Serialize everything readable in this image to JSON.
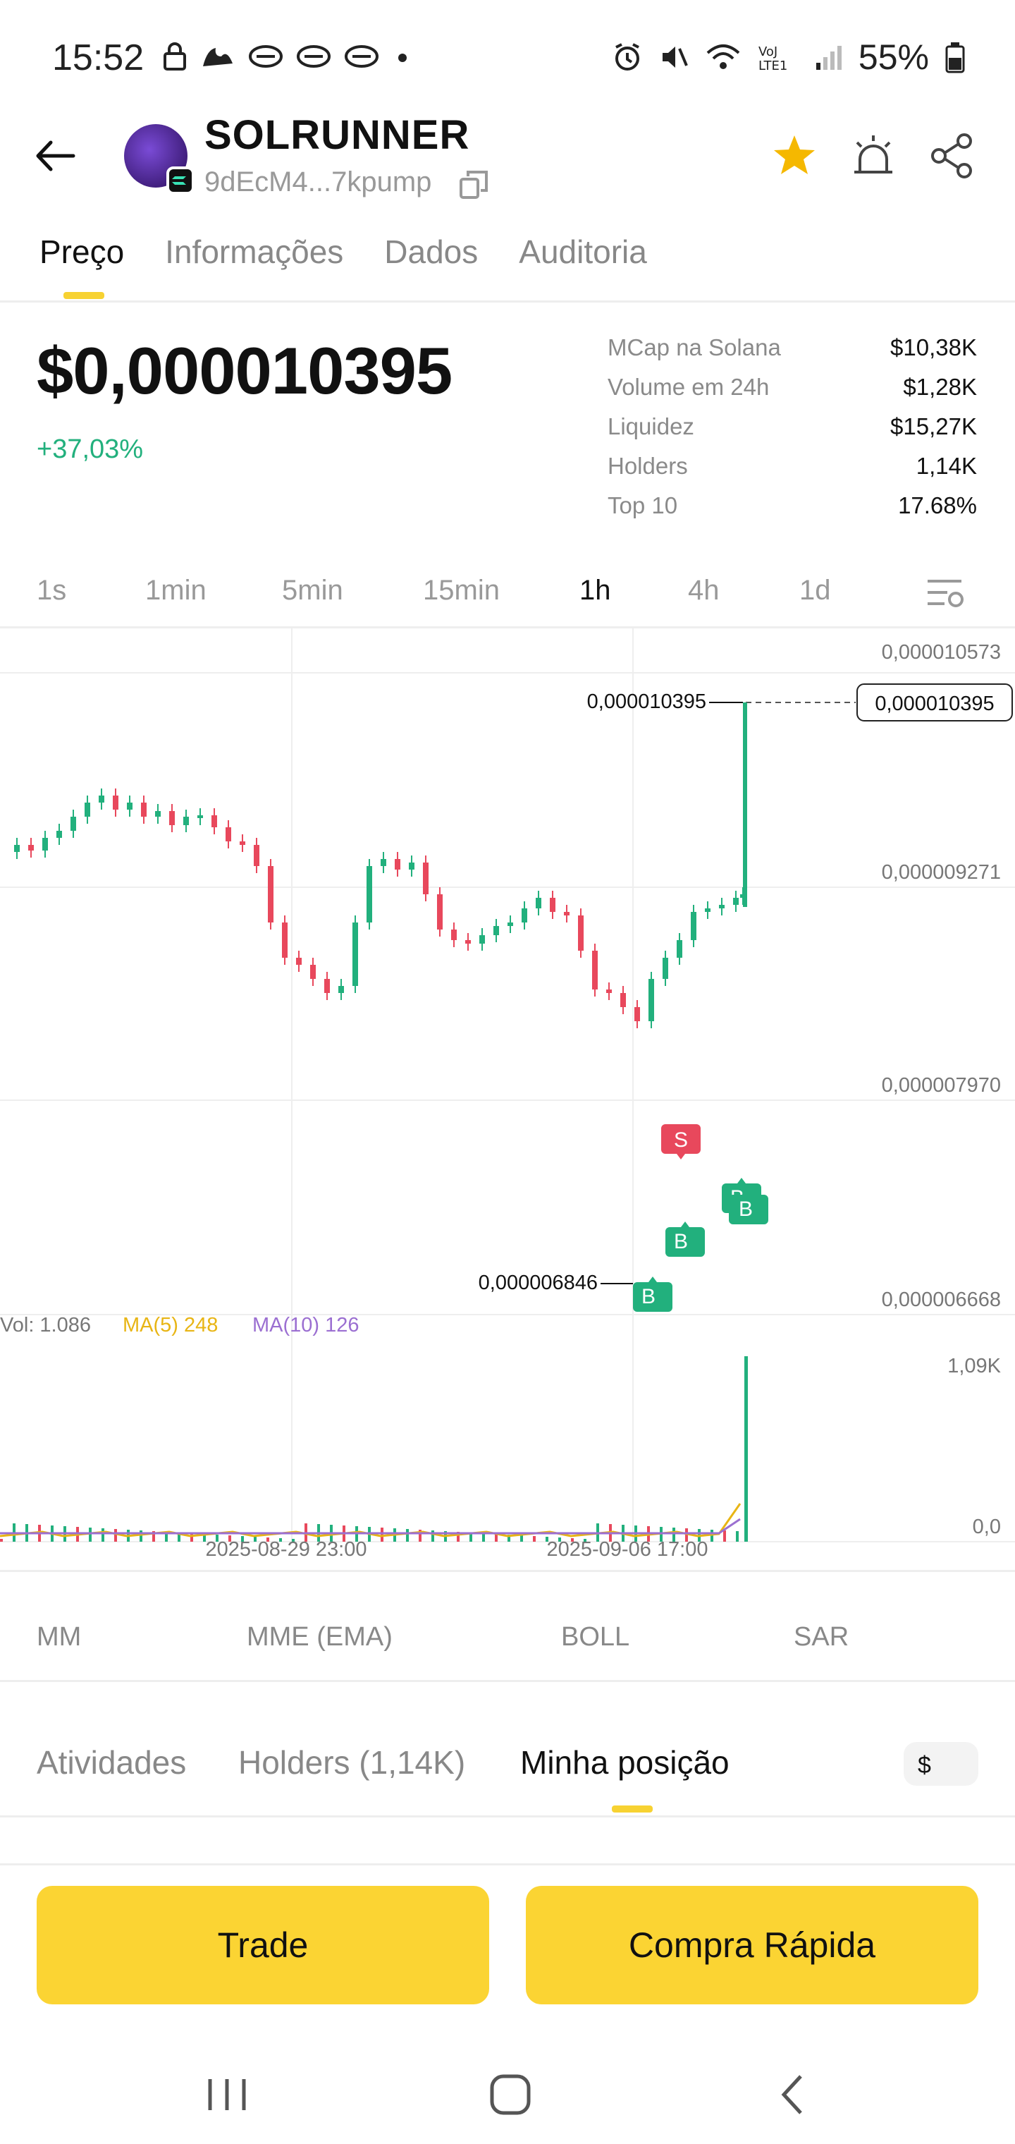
{
  "status_bar": {
    "time": "15:52",
    "battery": "55%",
    "network": "LTE1"
  },
  "header": {
    "title": "SOLRUNNER",
    "address": "9dEcM4...7kpump"
  },
  "tabs": [
    {
      "label": "Preço",
      "active": true
    },
    {
      "label": "Informações",
      "active": false
    },
    {
      "label": "Dados",
      "active": false
    },
    {
      "label": "Auditoria",
      "active": false
    }
  ],
  "price": {
    "value": "$0,000010395",
    "change": "+37,03%"
  },
  "stats": [
    {
      "label": "MCap na Solana",
      "value": "$10,38K"
    },
    {
      "label": "Volume em 24h",
      "value": "$1,28K"
    },
    {
      "label": "Liquidez",
      "value": "$15,27K"
    },
    {
      "label": "Holders",
      "value": "1,14K"
    },
    {
      "label": "Top 10",
      "value": "17.68%"
    }
  ],
  "timeframes": [
    "1s",
    "1min",
    "5min",
    "15min",
    "1h",
    "4h",
    "1d"
  ],
  "active_timeframe": "1h",
  "chart_data": {
    "type": "candlestick",
    "y_ticks": [
      "0,000010573",
      "0,000009271",
      "0,000007970",
      "0,000006668"
    ],
    "current_price_label": "0,000010395",
    "high_label": "0,000010395",
    "low_label": "0,000006846",
    "x_ticks": [
      "2025-08-29 23:00",
      "2025-09-06 17:00"
    ],
    "volume": {
      "label": "Vol: 1.086",
      "ma5": "MA(5) 248",
      "ma10": "MA(10) 126",
      "y_ticks": [
        "1,09K",
        "0,0"
      ]
    },
    "markers": [
      "B",
      "B",
      "S",
      "B",
      "B"
    ],
    "colors": {
      "up": "#22b07d",
      "down": "#e8485c",
      "ma5": "#e8b515",
      "ma10": "#9b6fd1"
    }
  },
  "indicators": [
    "MM",
    "MME (EMA)",
    "BOLL",
    "SAR"
  ],
  "bottom_tabs": [
    {
      "label": "Atividades",
      "active": false
    },
    {
      "label": "Holders (1,14K)",
      "active": false
    },
    {
      "label": "Minha posição",
      "active": true
    }
  ],
  "currency_toggle": "$",
  "buttons": {
    "trade": "Trade",
    "quick_buy": "Compra Rápida"
  },
  "colors": {
    "accent": "#fbd433",
    "positive": "#22b07d",
    "negative": "#e8485c",
    "star": "#f5b800"
  }
}
